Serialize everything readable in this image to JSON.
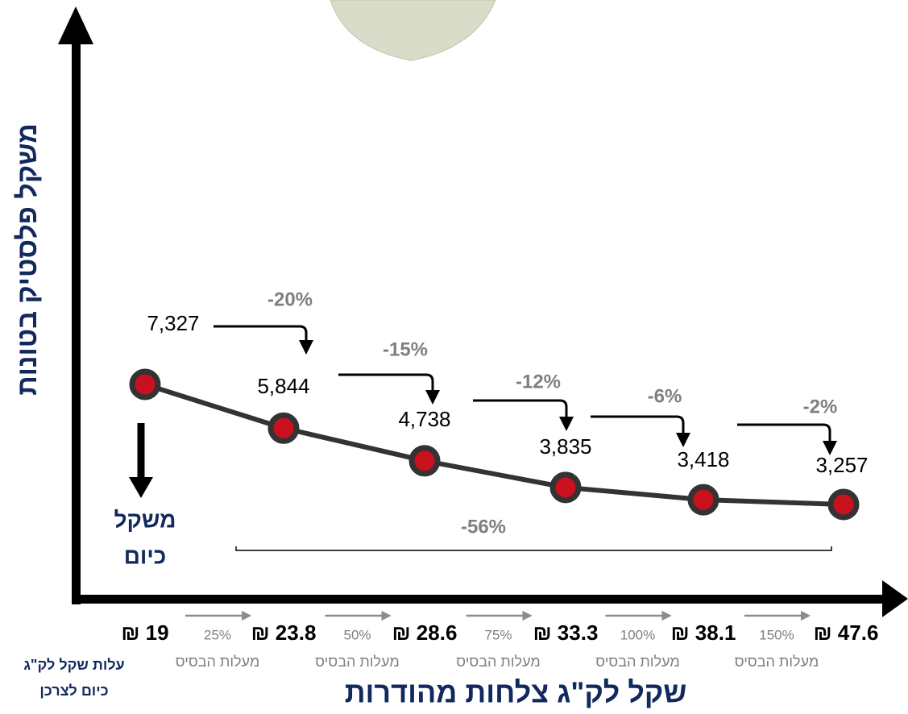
{
  "chart_data": {
    "type": "line",
    "y_label": "משקל פלסטיק בטונות",
    "x_label": "שקל לק\"ג צלחות מהודרות",
    "categories": [
      "₪ 19",
      "₪ 23.8",
      "₪ 28.6",
      "₪ 33.3",
      "₪ 38.1",
      "₪ 47.6"
    ],
    "values": [
      7327,
      5844,
      4738,
      3835,
      3418,
      3257
    ],
    "value_labels": [
      "7,327",
      "5,844",
      "4,738",
      "3,835",
      "3,418",
      "3,257"
    ],
    "color": "#c8101e",
    "line_color": "#333333",
    "changes": [
      "-20%",
      "-15%",
      "-12%",
      "-6%",
      "-2%"
    ],
    "total_change": "-56%",
    "steps": [
      {
        "label": "25%",
        "text": "מעלות הבסיס"
      },
      {
        "label": "50%",
        "text": "מעלות הבסיס"
      },
      {
        "label": "75%",
        "text": "מעלות הבסיס"
      },
      {
        "label": "100%",
        "text": "מעלות הבסיס"
      },
      {
        "label": "150%",
        "text": "מעלות הבסיס"
      }
    ],
    "current_weight_label": [
      "משקל",
      "כיום"
    ],
    "current_cost_label": [
      "עלות שקל לק\"ג",
      "כיום לצרכן"
    ]
  }
}
